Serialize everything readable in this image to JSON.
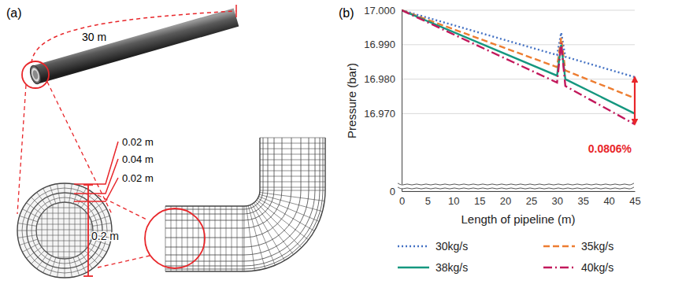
{
  "panel_labels": [
    "(a)",
    "(b)"
  ],
  "diagram": {
    "pipe_length": "30 m",
    "wall_labels": [
      "0.02 m",
      "0.04 m",
      "0.02 m"
    ],
    "diameter": "0.2 m"
  },
  "chart_data": {
    "type": "line",
    "x_label": "Length of pipeline (m)",
    "y_label": "Pressure (bar)",
    "x": [
      0,
      30,
      30.8,
      31.6,
      45
    ],
    "series": [
      {
        "name": "30kg/s",
        "color": "#4472c4",
        "line_style": "dotted",
        "values": [
          17.0,
          16.987,
          16.9935,
          16.9865,
          16.9806
        ]
      },
      {
        "name": "35kg/s",
        "color": "#ed7d31",
        "line_style": "dashed",
        "values": [
          17.0,
          16.9835,
          16.992,
          16.9825,
          16.9745
        ]
      },
      {
        "name": "38kg/s",
        "color": "#15977f",
        "line_style": "solid",
        "values": [
          17.0,
          16.981,
          16.99,
          16.98,
          16.97
        ]
      },
      {
        "name": "40kg/s",
        "color": "#c2185b",
        "line_style": "dashdot",
        "values": [
          17.0,
          16.979,
          16.9905,
          16.978,
          16.9669
        ]
      }
    ],
    "xlim": [
      0,
      45
    ],
    "xticks": [
      0,
      5,
      10,
      15,
      20,
      25,
      30,
      35,
      40,
      45
    ],
    "ylim": [
      0,
      17.0
    ],
    "axis_break": 16.95,
    "yticks": [
      0,
      {
        "value": 16.97,
        "label": "16.970"
      },
      {
        "value": 16.98,
        "label": "16.980"
      },
      {
        "value": 16.99,
        "label": "16.990"
      },
      {
        "value": 17.0,
        "label": "17.000"
      }
    ],
    "grid": true,
    "legend": "bottom",
    "annotations": [
      {
        "text": "0.0806%"
      }
    ]
  }
}
